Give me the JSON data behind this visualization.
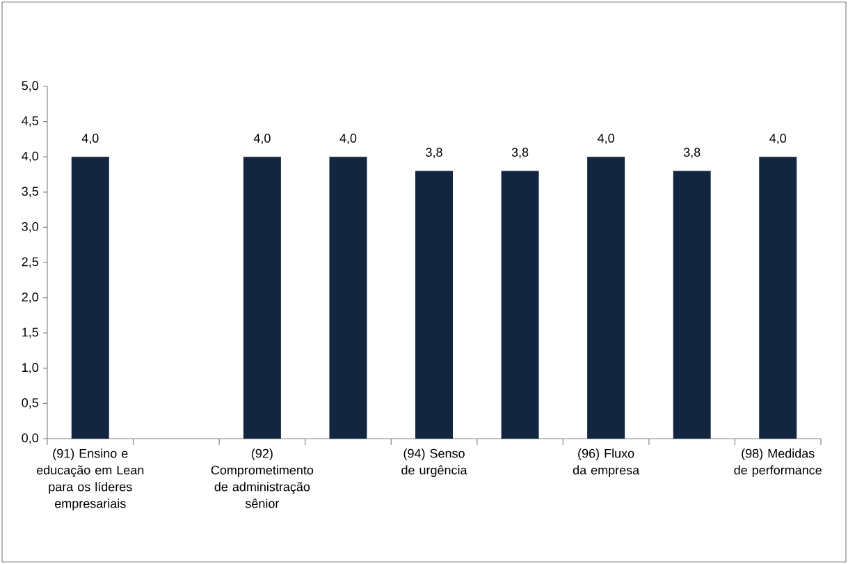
{
  "chart_data": {
    "type": "bar",
    "categories": [
      "(91) Ensino e educação em Lean para os líderes empresariais",
      null,
      "(92) Comprometimento de administração sênior",
      null,
      "(94) Senso de urgência",
      null,
      "(96) Fluxo da empresa",
      null,
      "(98) Medidas de performance"
    ],
    "values": [
      4.0,
      null,
      4.0,
      4.0,
      3.8,
      3.8,
      4.0,
      3.8,
      4.0
    ],
    "value_labels": [
      "4,0",
      null,
      "4,0",
      "4,0",
      "3,8",
      "3,8",
      "4,0",
      "3,8",
      "4,0"
    ],
    "color": "#12263f",
    "ylim": [
      0,
      5
    ],
    "yticks": [
      {
        "value": 0,
        "label": "0,0"
      },
      {
        "value": 0.5,
        "label": "0,5"
      },
      {
        "value": 1,
        "label": "1,0"
      },
      {
        "value": 1.5,
        "label": "1,5"
      },
      {
        "value": 2,
        "label": "2,0"
      },
      {
        "value": 2.5,
        "label": "2,5"
      },
      {
        "value": 3,
        "label": "3,0"
      },
      {
        "value": 3.5,
        "label": "3,5"
      },
      {
        "value": 4,
        "label": "4,0"
      },
      {
        "value": 4.5,
        "label": "4,5"
      },
      {
        "value": 5,
        "label": "5,0"
      }
    ]
  }
}
